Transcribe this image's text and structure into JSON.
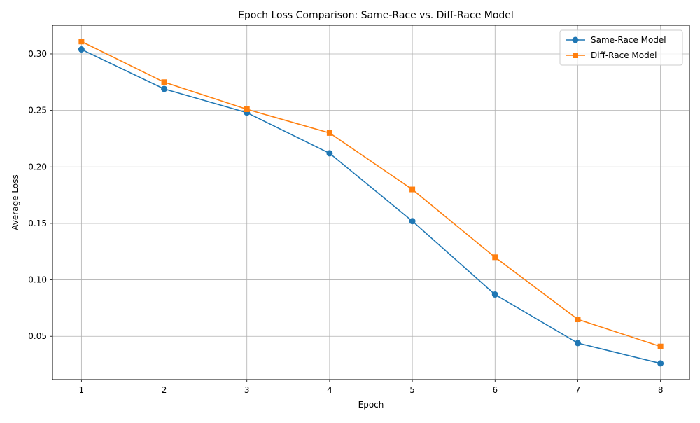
{
  "chart_data": {
    "type": "line",
    "title": "Epoch Loss Comparison: Same-Race vs. Diff-Race Model",
    "xlabel": "Epoch",
    "ylabel": "Average Loss",
    "x": [
      1,
      2,
      3,
      4,
      5,
      6,
      7,
      8
    ],
    "x_ticks": [
      1,
      2,
      3,
      4,
      5,
      6,
      7,
      8
    ],
    "y_ticks": [
      0.05,
      0.1,
      0.15,
      0.2,
      0.25,
      0.3
    ],
    "y_tick_labels": [
      "0.05",
      "0.10",
      "0.15",
      "0.20",
      "0.25",
      "0.30"
    ],
    "xlim": [
      0.65,
      8.35
    ],
    "ylim": [
      0.0117,
      0.3254
    ],
    "grid": true,
    "legend_position": "top-right",
    "series": [
      {
        "name": "Same-Race Model",
        "color": "#1f77b4",
        "marker": "circle",
        "values": [
          0.304,
          0.269,
          0.248,
          0.212,
          0.152,
          0.087,
          0.044,
          0.026
        ]
      },
      {
        "name": "Diff-Race Model",
        "color": "#ff7f0e",
        "marker": "square",
        "values": [
          0.311,
          0.275,
          0.251,
          0.23,
          0.18,
          0.12,
          0.065,
          0.041
        ]
      }
    ]
  }
}
